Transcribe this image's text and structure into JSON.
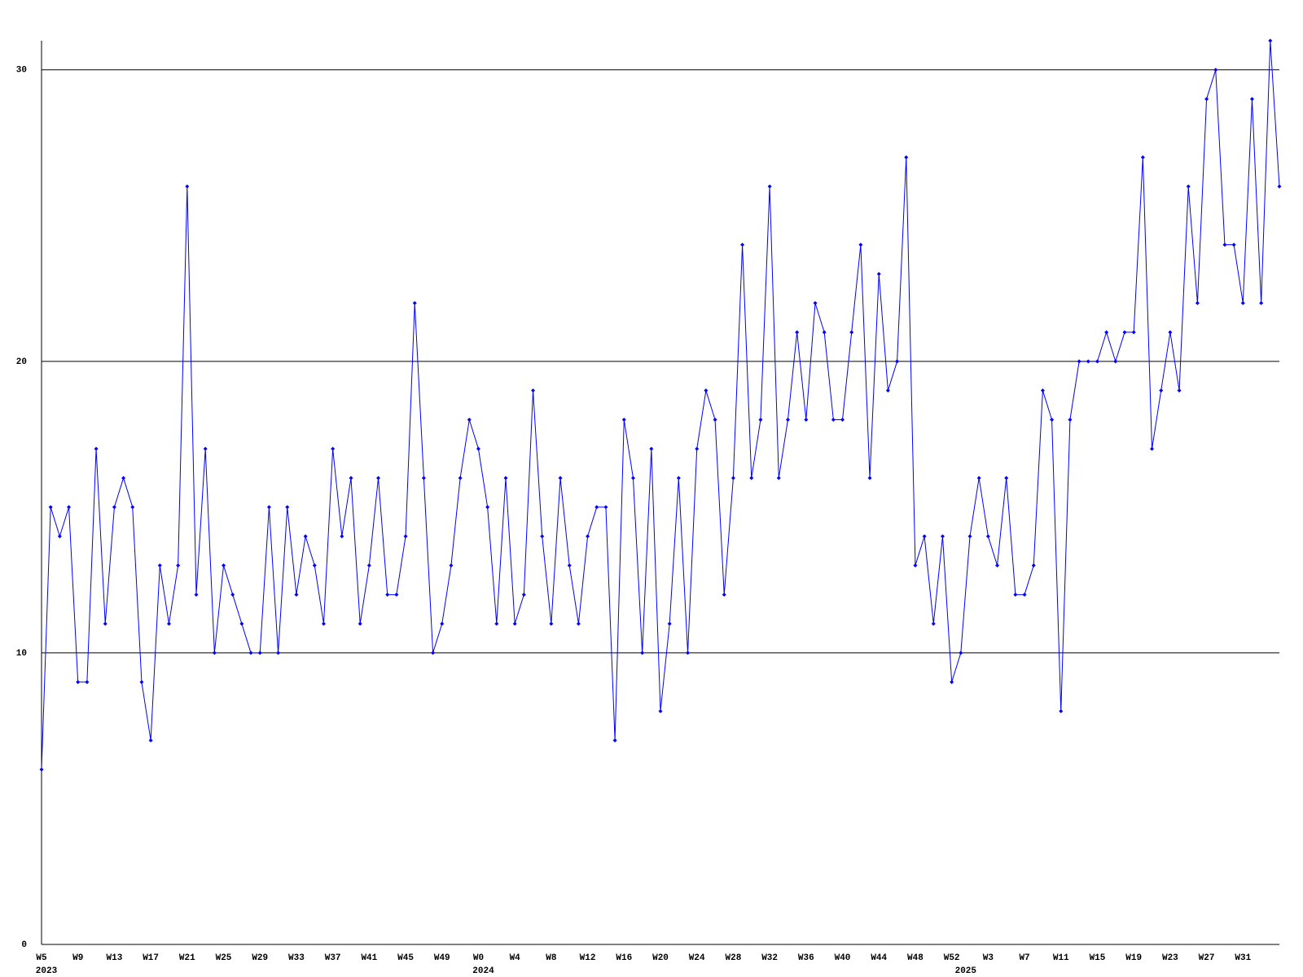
{
  "chart_data": {
    "type": "line",
    "categories": [
      "W5",
      null,
      null,
      null,
      "W9",
      null,
      null,
      null,
      "W13",
      null,
      null,
      null,
      "W17",
      null,
      null,
      null,
      "W21",
      null,
      null,
      null,
      "W25",
      null,
      null,
      null,
      "W29",
      null,
      null,
      null,
      "W33",
      null,
      null,
      null,
      "W37",
      null,
      null,
      null,
      "W41",
      null,
      null,
      null,
      "W45",
      null,
      null,
      null,
      "W49",
      null,
      null,
      null,
      "W0",
      null,
      null,
      null,
      "W4",
      null,
      null,
      null,
      "W8",
      null,
      null,
      null,
      "W12",
      null,
      null,
      null,
      "W16",
      null,
      null,
      null,
      "W20",
      null,
      null,
      null,
      "W24",
      null,
      null,
      null,
      "W28",
      null,
      null,
      null,
      "W32",
      null,
      null,
      null,
      "W36",
      null,
      null,
      null,
      "W40",
      null,
      null,
      null,
      "W44",
      null,
      null,
      null,
      "W48",
      null,
      null,
      null,
      "W52",
      null,
      null,
      null,
      "W3",
      null,
      null,
      null,
      "W7",
      null,
      null,
      null,
      "W11",
      null,
      null,
      null,
      "W15",
      null,
      null,
      null,
      "W19",
      null,
      null,
      null,
      "W23",
      null,
      null,
      null,
      "W27",
      null,
      null,
      null,
      "W31",
      null,
      null,
      null,
      null
    ],
    "year_labels": [
      "2023",
      null,
      null,
      null,
      null,
      null,
      null,
      null,
      null,
      null,
      null,
      null,
      null,
      null,
      null,
      null,
      null,
      null,
      null,
      null,
      null,
      null,
      null,
      null,
      null,
      null,
      null,
      null,
      null,
      null,
      null,
      null,
      null,
      null,
      null,
      null,
      null,
      null,
      null,
      null,
      null,
      null,
      null,
      null,
      null,
      null,
      null,
      null,
      "2024",
      null,
      null,
      null,
      null,
      null,
      null,
      null,
      null,
      null,
      null,
      null,
      null,
      null,
      null,
      null,
      null,
      null,
      null,
      null,
      null,
      null,
      null,
      null,
      null,
      null,
      null,
      null,
      null,
      null,
      null,
      null,
      null,
      null,
      null,
      null,
      null,
      null,
      null,
      null,
      null,
      null,
      null,
      null,
      null,
      null,
      null,
      null,
      null,
      null,
      null,
      null,
      null,
      "2025",
      null,
      null,
      null,
      null,
      null,
      null,
      null,
      null,
      null,
      null,
      null,
      null,
      null,
      null,
      null,
      null,
      null,
      null,
      null,
      null,
      null,
      null,
      null,
      null,
      null,
      null,
      null,
      null,
      null,
      null,
      null,
      null,
      null,
      null,
      null
    ],
    "series": [
      {
        "color": "#0000ff",
        "values": [
          6,
          15,
          14,
          15,
          9,
          9,
          17,
          11,
          15,
          16,
          15,
          9,
          7,
          13,
          11,
          13,
          26,
          12,
          17,
          10,
          13,
          12,
          11,
          10,
          10,
          15,
          10,
          15,
          12,
          14,
          13,
          11,
          17,
          14,
          16,
          11,
          13,
          16,
          12,
          12,
          14,
          22,
          16,
          10,
          11,
          13,
          16,
          18,
          17,
          15,
          11,
          16,
          11,
          12,
          19,
          14,
          11,
          16,
          13,
          11,
          14,
          15,
          15,
          7,
          18,
          16,
          10,
          17,
          8,
          11,
          16,
          10,
          17,
          19,
          18,
          12,
          16,
          24,
          16,
          18,
          26,
          16,
          18,
          21,
          18,
          22,
          21,
          18,
          18,
          21,
          24,
          16,
          23,
          19,
          20,
          27,
          13,
          14,
          11,
          14,
          9,
          10,
          14,
          16,
          14,
          13,
          16,
          12,
          12,
          13,
          19,
          18,
          8,
          18,
          20,
          20,
          20,
          21,
          20,
          21,
          21,
          27,
          17,
          19,
          21,
          19,
          26,
          22,
          29,
          30,
          24,
          24,
          22,
          29,
          22,
          31,
          26
        ]
      }
    ],
    "ylim": [
      0,
      31
    ],
    "yticks": [
      0,
      10,
      20,
      30
    ],
    "grid": true
  }
}
